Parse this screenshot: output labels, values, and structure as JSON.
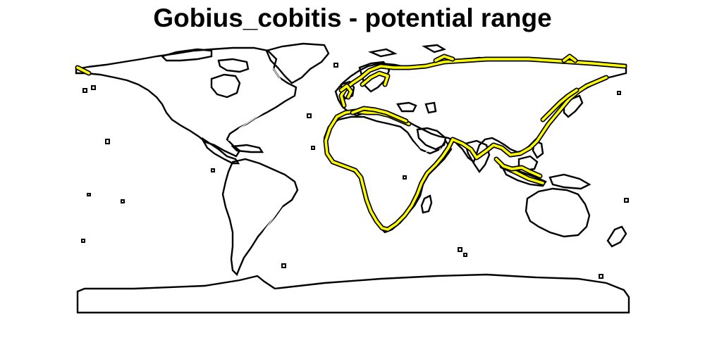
{
  "map": {
    "title": "Gobius_cobitis - potential range",
    "colors": {
      "range": "#ffff00",
      "coastline": "#000000",
      "background": "#ffffff"
    }
  }
}
